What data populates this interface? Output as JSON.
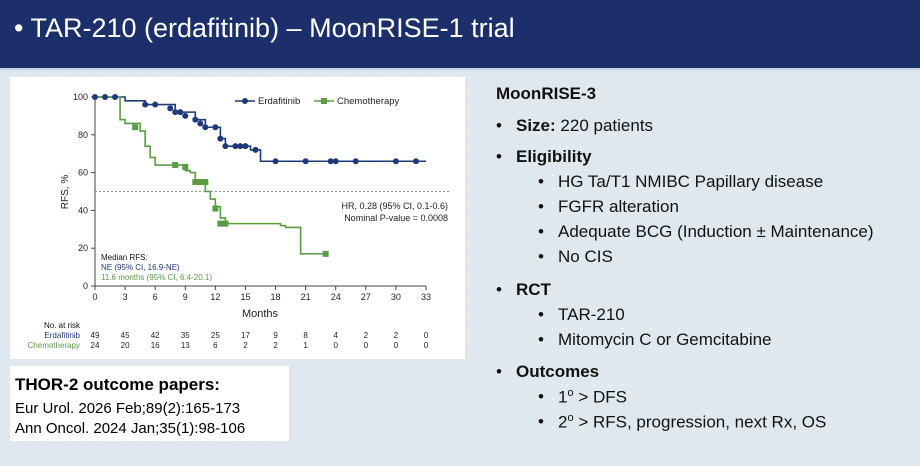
{
  "header": {
    "title": "• TAR-210 (erdafitinib) – MoonRISE-1 trial"
  },
  "chart_data": {
    "type": "line",
    "ylabel": "RFS, %",
    "xlabel": "Months",
    "x_ticks": [
      0,
      3,
      6,
      9,
      12,
      15,
      18,
      21,
      24,
      27,
      30,
      33
    ],
    "y_ticks": [
      0,
      20,
      40,
      60,
      80,
      100
    ],
    "xlim": [
      0,
      33
    ],
    "ylim": [
      0,
      100
    ],
    "grid": false,
    "legend_position": "top",
    "reference_line_y": 50,
    "series": [
      {
        "name": "Erdafitinib",
        "color": "#1f3a78",
        "points": [
          [
            0,
            100
          ],
          [
            2,
            100
          ],
          [
            3,
            98
          ],
          [
            4.5,
            98
          ],
          [
            5,
            96
          ],
          [
            7,
            96
          ],
          [
            8,
            92
          ],
          [
            9.5,
            92
          ],
          [
            10,
            88
          ],
          [
            11,
            84
          ],
          [
            12,
            84
          ],
          [
            12.5,
            78
          ],
          [
            13,
            74
          ],
          [
            15,
            74
          ],
          [
            15.5,
            72
          ],
          [
            16,
            72
          ],
          [
            16.5,
            66
          ],
          [
            33,
            66
          ]
        ],
        "censor": [
          [
            0,
            100
          ],
          [
            1,
            100
          ],
          [
            2,
            100
          ],
          [
            5,
            96
          ],
          [
            6,
            96
          ],
          [
            7.5,
            94
          ],
          [
            8,
            92
          ],
          [
            8.5,
            92
          ],
          [
            9,
            90
          ],
          [
            10,
            88
          ],
          [
            10.5,
            86
          ],
          [
            11,
            84
          ],
          [
            12,
            84
          ],
          [
            12.5,
            78
          ],
          [
            13,
            74
          ],
          [
            14,
            74
          ],
          [
            14.5,
            74
          ],
          [
            15,
            74
          ],
          [
            16,
            72
          ],
          [
            18,
            66
          ],
          [
            21,
            66
          ],
          [
            23.5,
            66
          ],
          [
            24,
            66
          ],
          [
            26,
            66
          ],
          [
            30,
            66
          ],
          [
            32,
            66
          ]
        ]
      },
      {
        "name": "Chemotherapy",
        "color": "#5a9c43",
        "points": [
          [
            0,
            100
          ],
          [
            2,
            100
          ],
          [
            2.5,
            88
          ],
          [
            3,
            86
          ],
          [
            4,
            86
          ],
          [
            4.5,
            82
          ],
          [
            5,
            74
          ],
          [
            5.5,
            68
          ],
          [
            6,
            64
          ],
          [
            8,
            64
          ],
          [
            9,
            61
          ],
          [
            9.5,
            60
          ],
          [
            10,
            55
          ],
          [
            10.5,
            54
          ],
          [
            11,
            50
          ],
          [
            11.5,
            46
          ],
          [
            12,
            42
          ],
          [
            12.5,
            36
          ],
          [
            13,
            33
          ],
          [
            18,
            33
          ],
          [
            18.5,
            32
          ],
          [
            19,
            31
          ],
          [
            20,
            31
          ],
          [
            20.5,
            17
          ],
          [
            23,
            17
          ]
        ],
        "censor": [
          [
            4,
            84
          ],
          [
            8,
            64
          ],
          [
            9,
            63
          ],
          [
            10,
            55
          ],
          [
            10.5,
            55
          ],
          [
            11,
            55
          ],
          [
            12,
            41
          ],
          [
            12.5,
            33
          ],
          [
            13,
            33
          ],
          [
            23,
            17
          ]
        ]
      }
    ],
    "annotations": {
      "hr_text": "HR, 0.28 (95% CI, 0.1-0.6)",
      "pvalue_text": "Nominal P-value = 0.0008",
      "median_title": "Median RFS:",
      "median_erda": "NE (95% CI, 16.9-NE)",
      "median_chemo": "11.6 months (95% CI, 6.4-20.1)"
    },
    "at_risk": {
      "title": "No. at risk",
      "rows": [
        {
          "name": "Erdafitinib",
          "values": [
            "49",
            "45",
            "42",
            "35",
            "25",
            "17",
            "9",
            "8",
            "4",
            "2",
            "2",
            "0"
          ]
        },
        {
          "name": "Chemotherapy",
          "values": [
            "24",
            "20",
            "16",
            "13",
            "6",
            "2",
            "2",
            "1",
            "0",
            "0",
            "0",
            "0"
          ]
        }
      ]
    }
  },
  "papers": {
    "title": "THOR-2 outcome papers:",
    "lines": [
      "Eur Urol. 2026 Feb;89(2):165-173",
      "Ann Oncol. 2024 Jan;35(1):98-106"
    ]
  },
  "right": {
    "title": "MoonRISE-3",
    "size_label": "Size:",
    "size_value": " 220 patients",
    "eligibility_label": "Eligibility",
    "eligibility_items": [
      "HG Ta/T1 NMIBC Papillary disease",
      "FGFR alteration",
      "Adequate BCG (Induction ± Maintenance)",
      "No CIS"
    ],
    "rct_label": "RCT",
    "rct_items": [
      "TAR-210",
      "Mitomycin C or Gemcitabine"
    ],
    "outcomes_label": "Outcomes",
    "outcome_1_pre": "1",
    "outcome_1_sup": "o",
    "outcome_1_post": " > DFS",
    "outcome_2_pre": "2",
    "outcome_2_sup": "o",
    "outcome_2_post": " > RFS, progression, next Rx, OS"
  }
}
